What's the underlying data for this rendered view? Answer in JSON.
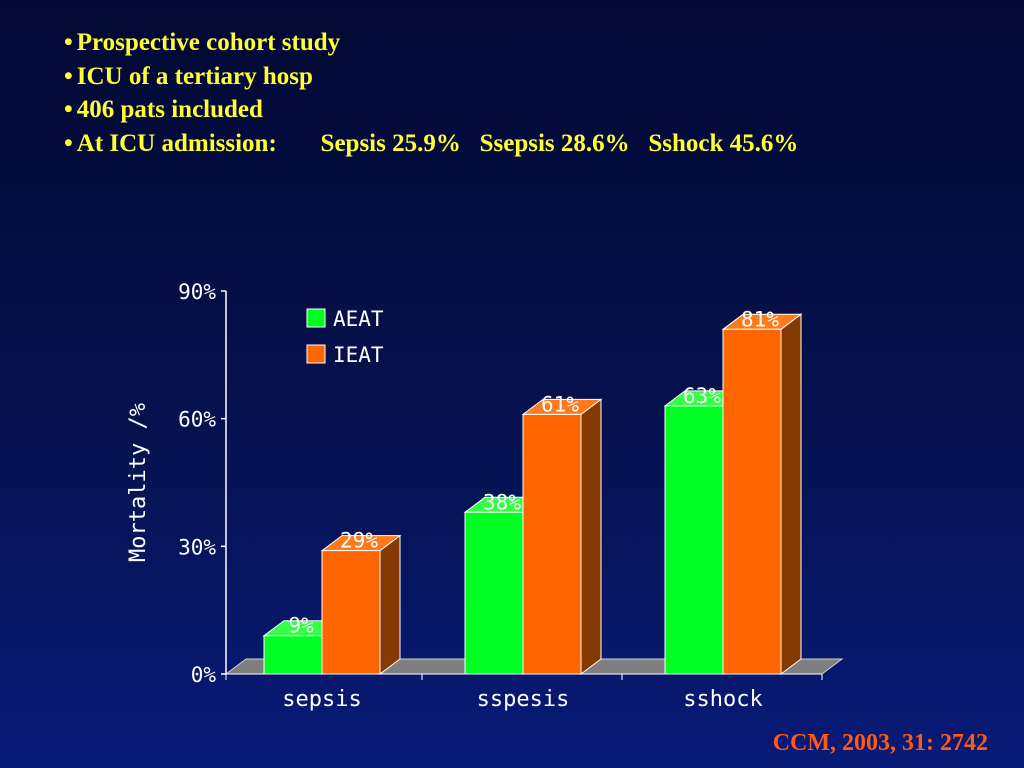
{
  "bullets": [
    "Prospective cohort study",
    "ICU of a tertiary hosp",
    "406 pats included",
    "At ICU admission:       Sepsis 25.9%   Ssepsis 28.6%   Sshock 45.6%"
  ],
  "citation": "CCM, 2003, 31: 2742",
  "colors": {
    "AEAT_front": "#00ff22",
    "AEAT_top": "#33ff44",
    "AEAT_side": "#00aa11",
    "IEAT_front": "#ff6600",
    "IEAT_top": "#ff7a1a",
    "IEAT_side": "#843a00",
    "floor": "#7f7f7f"
  },
  "chart_data": {
    "type": "bar",
    "categories": [
      "sepsis",
      "sspesis",
      "sshock"
    ],
    "series": [
      {
        "name": "AEAT",
        "values": [
          9,
          38,
          63
        ],
        "labels": [
          "9%",
          "38%",
          "63%"
        ]
      },
      {
        "name": "IEAT",
        "values": [
          29,
          61,
          81
        ],
        "labels": [
          "29%",
          "61%",
          "81%"
        ]
      }
    ],
    "ylabel": "Mortality /%",
    "yticks": [
      "0%",
      "30%",
      "60%",
      "90%"
    ],
    "ylim": [
      0,
      90
    ],
    "legend_placement": "top-left",
    "bar_style": "3d"
  }
}
